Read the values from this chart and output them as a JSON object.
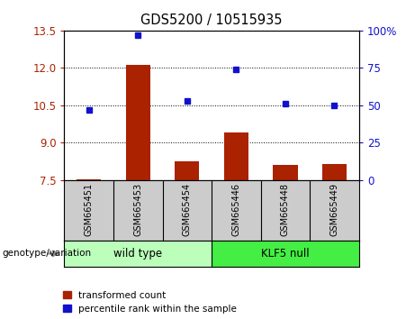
{
  "title": "GDS5200 / 10515935",
  "samples": [
    "GSM665451",
    "GSM665453",
    "GSM665454",
    "GSM665446",
    "GSM665448",
    "GSM665449"
  ],
  "red_values": [
    7.55,
    12.1,
    8.25,
    9.4,
    8.1,
    8.15
  ],
  "blue_percentiles": [
    47,
    97,
    53,
    74,
    51,
    50
  ],
  "ylim": [
    7.5,
    13.5
  ],
  "yticks_left": [
    7.5,
    9.0,
    10.5,
    12.0,
    13.5
  ],
  "yticks_right": [
    0,
    25,
    50,
    75,
    100
  ],
  "y2lim": [
    0,
    100
  ],
  "red_color": "#aa2200",
  "blue_color": "#1111cc",
  "bar_width": 0.5,
  "wt_color": "#bbffbb",
  "klf_color": "#44ee44",
  "gray_color": "#cccccc",
  "label_red": "transformed count",
  "label_blue": "percentile rank within the sample",
  "genotype_label": "genotype/variation",
  "wt_label": "wild type",
  "klf_label": "KLF5 null"
}
